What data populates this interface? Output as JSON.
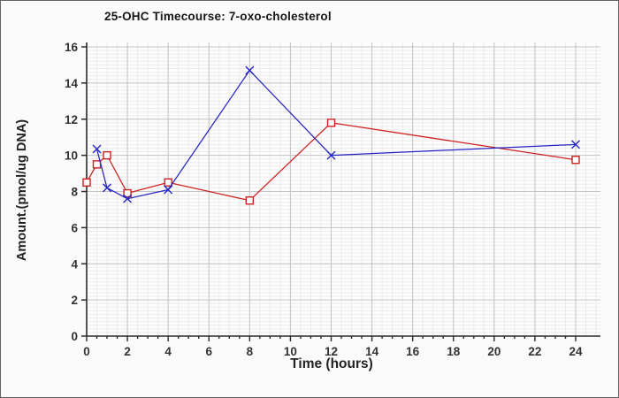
{
  "chart_data": {
    "type": "line",
    "title": "25-OHC Timecourse: 7-oxo-cholesterol",
    "xlabel": "Time (hours)",
    "ylabel": "Amount.(pmol/ug DNA)",
    "xlim": [
      0,
      24
    ],
    "ylim": [
      0,
      16
    ],
    "x_ticks": [
      0,
      2,
      4,
      6,
      8,
      10,
      12,
      14,
      16,
      18,
      20,
      22,
      24
    ],
    "y_ticks": [
      0,
      2,
      4,
      6,
      8,
      10,
      12,
      14,
      16
    ],
    "grid": {
      "major_x_step": 2,
      "major_y_step": 2,
      "minor_x_step": 0.5,
      "minor_y_step": 0.2
    },
    "legend": "none",
    "series": [
      {
        "name": "series-red",
        "color": "#cf1f1f",
        "marker": "open-square",
        "points": [
          [
            0,
            8.5
          ],
          [
            0.5,
            9.5
          ],
          [
            1,
            10.0
          ],
          [
            2,
            7.9
          ],
          [
            4,
            8.5
          ],
          [
            8,
            7.5
          ],
          [
            12,
            11.8
          ],
          [
            24,
            9.75
          ]
        ]
      },
      {
        "name": "series-blue",
        "color": "#2424c4",
        "marker": "x-cross",
        "points": [
          [
            0.5,
            10.35
          ],
          [
            1,
            8.2
          ],
          [
            2,
            7.6
          ],
          [
            4,
            8.1
          ],
          [
            8,
            14.7
          ],
          [
            12,
            10.0
          ],
          [
            24,
            10.6
          ]
        ]
      }
    ]
  },
  "colors": {
    "outer_background": "#fafafa",
    "plot_background": "#fdfdfd",
    "grid_major": "#c4c4c4",
    "grid_minor": "#ececec",
    "axis": "#2b2b2b",
    "frame_border": "#636363",
    "text": "#333333"
  }
}
